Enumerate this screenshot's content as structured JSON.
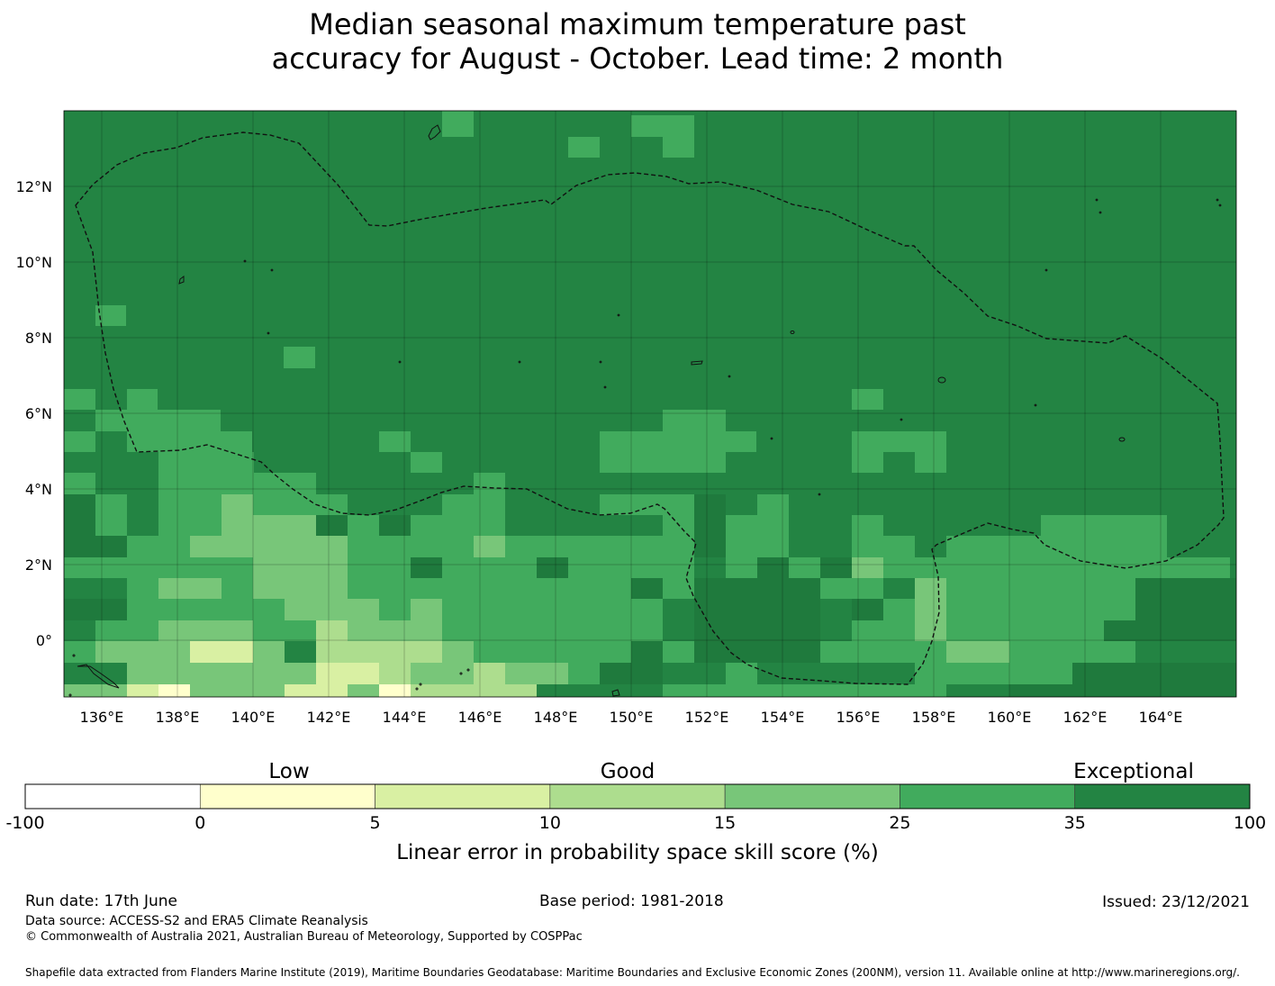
{
  "title": {
    "line1": "Median seasonal maximum temperature past",
    "line2": "accuracy for August - October. Lead time: 2 month"
  },
  "map": {
    "lon_range": [
      135,
      166
    ],
    "lat_range": [
      -1.5,
      14
    ],
    "lon_ticks": [
      "136°E",
      "138°E",
      "140°E",
      "142°E",
      "144°E",
      "146°E",
      "148°E",
      "150°E",
      "152°E",
      "154°E",
      "156°E",
      "158°E",
      "160°E",
      "162°E",
      "164°E"
    ],
    "lat_ticks": [
      "12°N",
      "10°N",
      "8°N",
      "6°N",
      "4°N",
      "2°N",
      "0°"
    ],
    "base_color": "#238443",
    "grid_on": true
  },
  "colorbar": {
    "categories": [
      "Low",
      "Good",
      "Exceptional"
    ],
    "ticks": [
      "-100",
      "0",
      "5",
      "10",
      "15",
      "25",
      "35",
      "100"
    ],
    "colors": [
      "#ffffff",
      "#ffffcc",
      "#d9f0a3",
      "#addd8e",
      "#78c679",
      "#41ab5d",
      "#238443"
    ],
    "label": "Linear error in probability space skill score (%)"
  },
  "footer": {
    "run_date": "Run date: 17th June",
    "base_period": "Base period: 1981-2018",
    "issued": "Issued: 23/12/2021",
    "data_source": "Data source: ACCESS-S2 and ERA5 Climate Reanalysis",
    "copyright": "© Commonwealth of Australia 2021, Australian Bureau of Meteorology, Supported by COSPPac",
    "shapefile": "Shapefile data extracted from Flanders Marine Institute (2019), Maritime Boundaries Geodatabase: Maritime Boundaries and Exclusive Economic Zones (200NM), version 11. Available online at http://www.marineregions.org/."
  }
}
